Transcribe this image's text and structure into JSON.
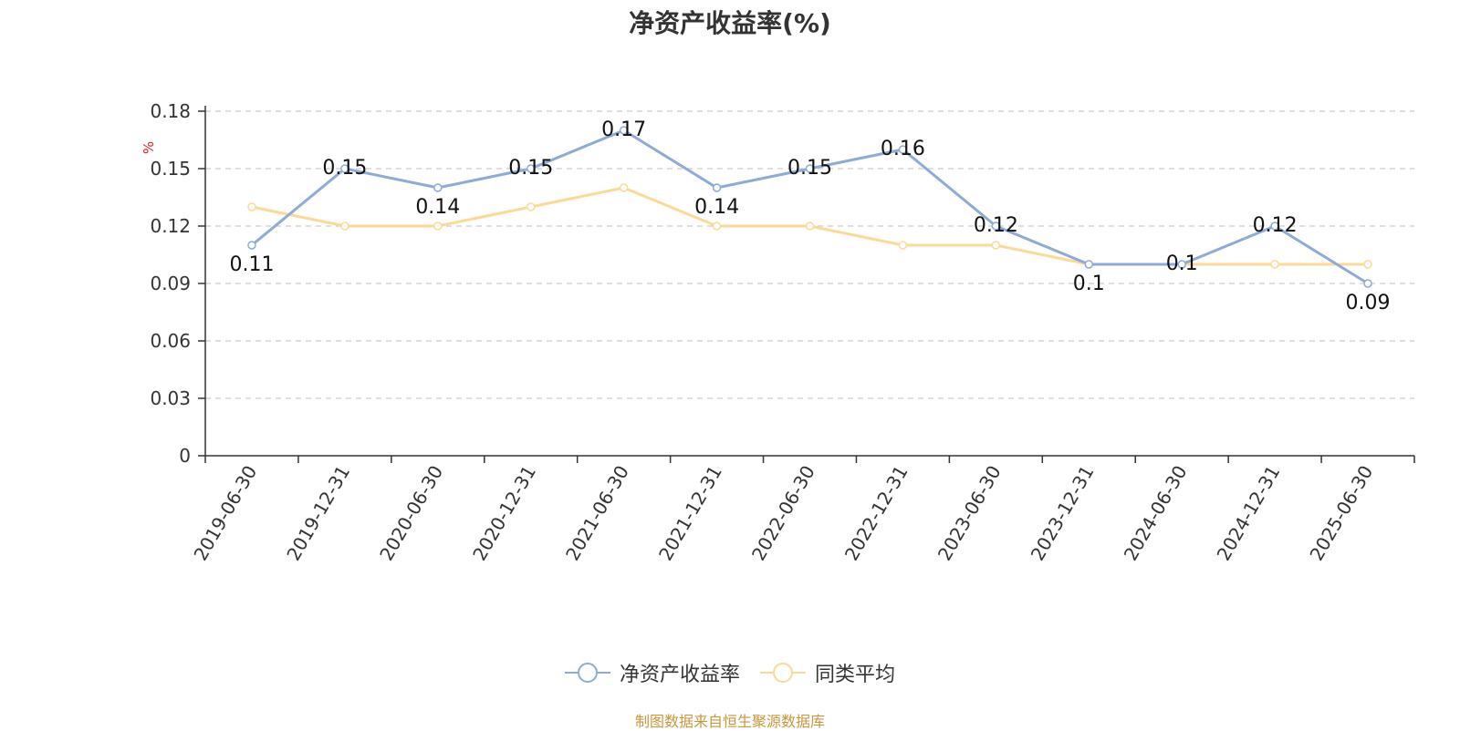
{
  "title": "净资产收益率(%)",
  "source": "制图数据来自恒生聚源数据库",
  "chart_data": {
    "type": "line",
    "title": "净资产收益率(%)",
    "ylabel": "%",
    "ylim": [
      0,
      0.18
    ],
    "yticks": [
      0,
      0.03,
      0.06,
      0.09,
      0.12,
      0.15,
      0.18
    ],
    "ytick_labels": [
      "0",
      "0.03",
      "0.06",
      "0.09",
      "0.12",
      "0.15",
      "0.18"
    ],
    "grid": true,
    "legend_position": "bottom",
    "categories": [
      "2019-06-30",
      "2019-12-31",
      "2020-06-30",
      "2020-12-31",
      "2021-06-30",
      "2021-12-31",
      "2022-06-30",
      "2022-12-31",
      "2023-06-30",
      "2023-12-31",
      "2024-06-30",
      "2024-12-31",
      "2025-06-30"
    ],
    "series": [
      {
        "name": "净资产收益率",
        "color": "#8eaad6",
        "values": [
          0.11,
          0.15,
          0.14,
          0.15,
          0.17,
          0.14,
          0.15,
          0.16,
          0.12,
          0.1,
          0.1,
          0.12,
          0.09
        ],
        "labels": [
          "0.11",
          "0.15",
          "0.14",
          "0.15",
          "0.17",
          "0.14",
          "0.15",
          "0.16",
          "0.12",
          "0.1",
          "0.1",
          "0.12",
          "0.09"
        ]
      },
      {
        "name": "同类平均",
        "color": "#fbd996",
        "values": [
          0.13,
          0.12,
          0.12,
          0.13,
          0.14,
          0.12,
          0.12,
          0.11,
          0.11,
          0.1,
          0.1,
          0.1,
          0.1
        ]
      }
    ]
  }
}
